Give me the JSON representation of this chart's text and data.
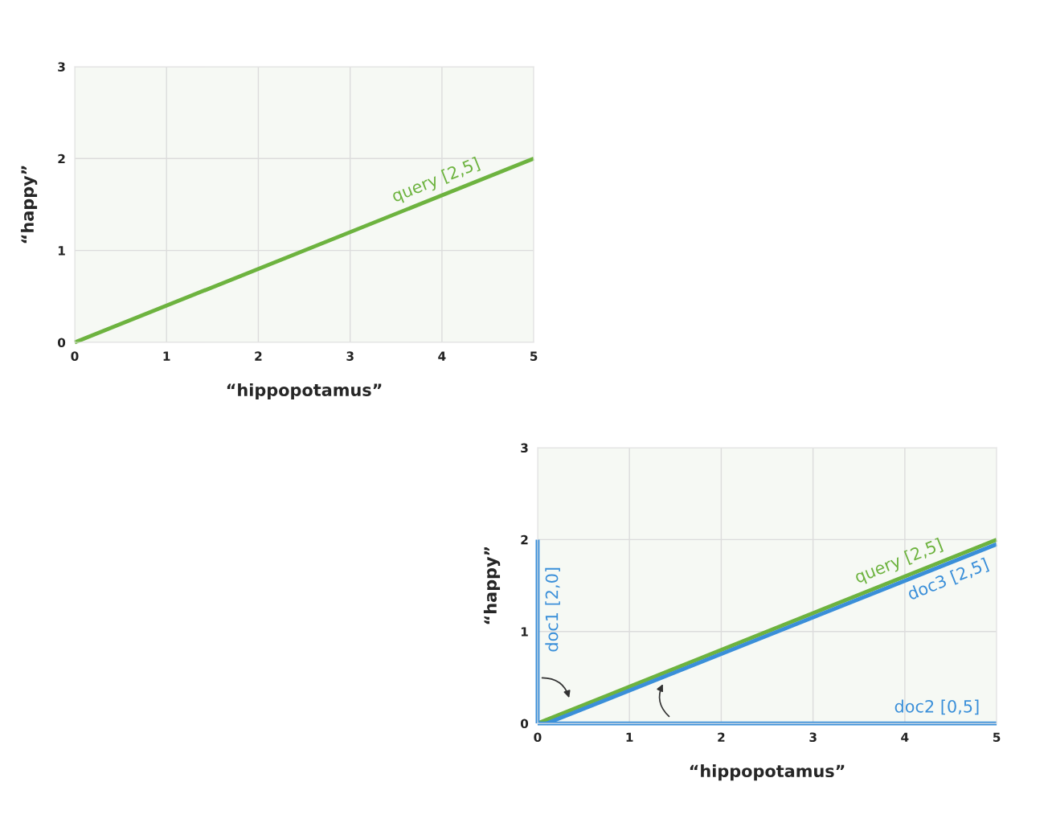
{
  "chart_data": [
    {
      "type": "line",
      "xlabel": "“hippopotamus”",
      "ylabel": "“happy”",
      "xlim": [
        0,
        5
      ],
      "ylim": [
        0,
        3
      ],
      "xticks": [
        0,
        1,
        2,
        3,
        4,
        5
      ],
      "yticks": [
        0,
        1,
        2,
        3
      ],
      "grid": true,
      "series": [
        {
          "name": "query [2,5]",
          "color": "#6db33f",
          "x": [
            0,
            5
          ],
          "values": [
            0,
            2
          ]
        }
      ]
    },
    {
      "type": "line",
      "xlabel": "“hippopotamus”",
      "ylabel": "“happy”",
      "xlim": [
        0,
        5
      ],
      "ylim": [
        0,
        3
      ],
      "xticks": [
        0,
        1,
        2,
        3,
        4,
        5
      ],
      "yticks": [
        0,
        1,
        2,
        3
      ],
      "grid": true,
      "series": [
        {
          "name": "query [2,5]",
          "color": "#6db33f",
          "x": [
            0,
            5
          ],
          "values": [
            0,
            2
          ]
        },
        {
          "name": "doc3 [2,5]",
          "color": "#3a8fd9",
          "x": [
            0.1,
            5
          ],
          "values": [
            0,
            1.95
          ]
        },
        {
          "name": "doc1 [2,0]",
          "color": "#3a8fd9",
          "x": [
            0,
            0
          ],
          "values": [
            0,
            2
          ]
        },
        {
          "name": "doc2 [0,5]",
          "color": "#3a8fd9",
          "x": [
            0,
            5
          ],
          "values": [
            0,
            0
          ]
        }
      ]
    }
  ]
}
